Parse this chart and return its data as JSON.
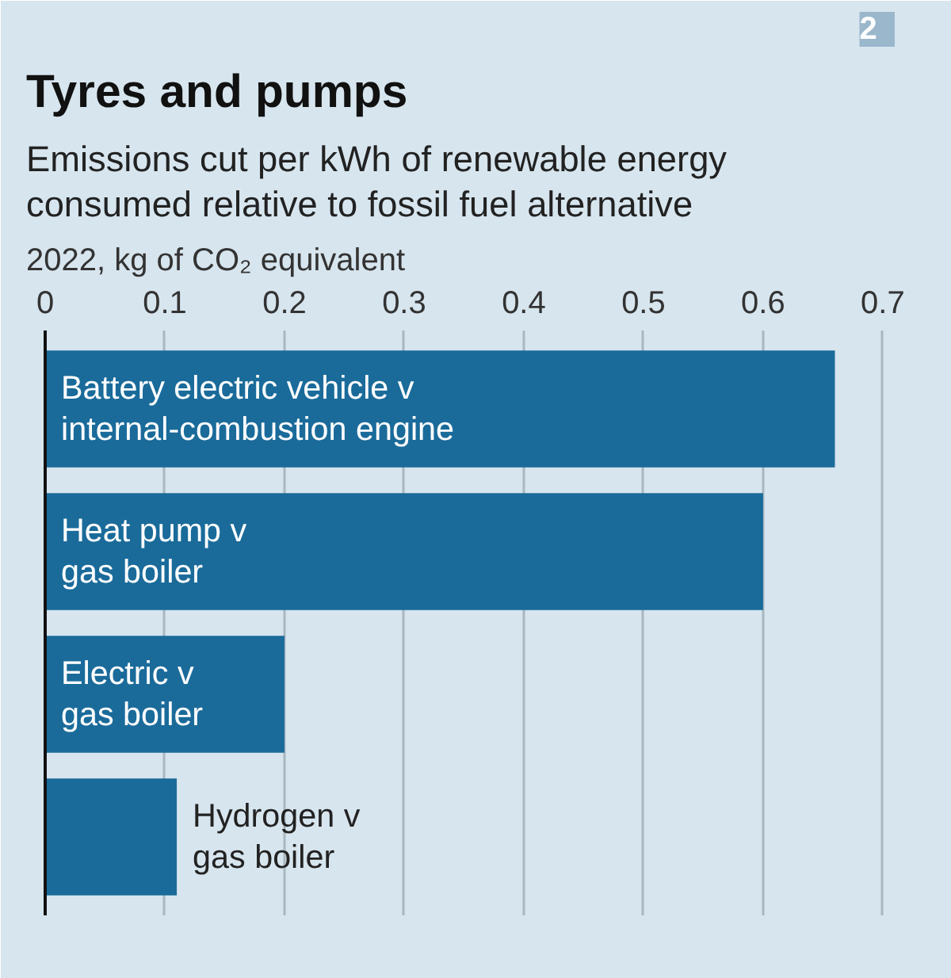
{
  "chart_data": {
    "type": "bar",
    "orientation": "horizontal",
    "title": "Tyres and pumps",
    "subtitle": "Emissions cut per kWh of renewable energy\nconsumed relative to fossil fuel alternative",
    "xlabel": "2022, kg of CO₂ equivalent",
    "categories": [
      "Battery electric vehicle v\ninternal-combustion engine",
      "Heat pump v\ngas boiler",
      "Electric v\ngas boiler",
      "Hydrogen v\ngas boiler"
    ],
    "values": [
      0.66,
      0.6,
      0.2,
      0.11
    ],
    "color": "#1a6b9a",
    "xlim": [
      0,
      0.71
    ],
    "xticks": [
      0,
      0.1,
      0.2,
      0.3,
      0.4,
      0.5,
      0.6,
      0.7
    ],
    "grid": "x",
    "annotations": [
      "2"
    ]
  }
}
